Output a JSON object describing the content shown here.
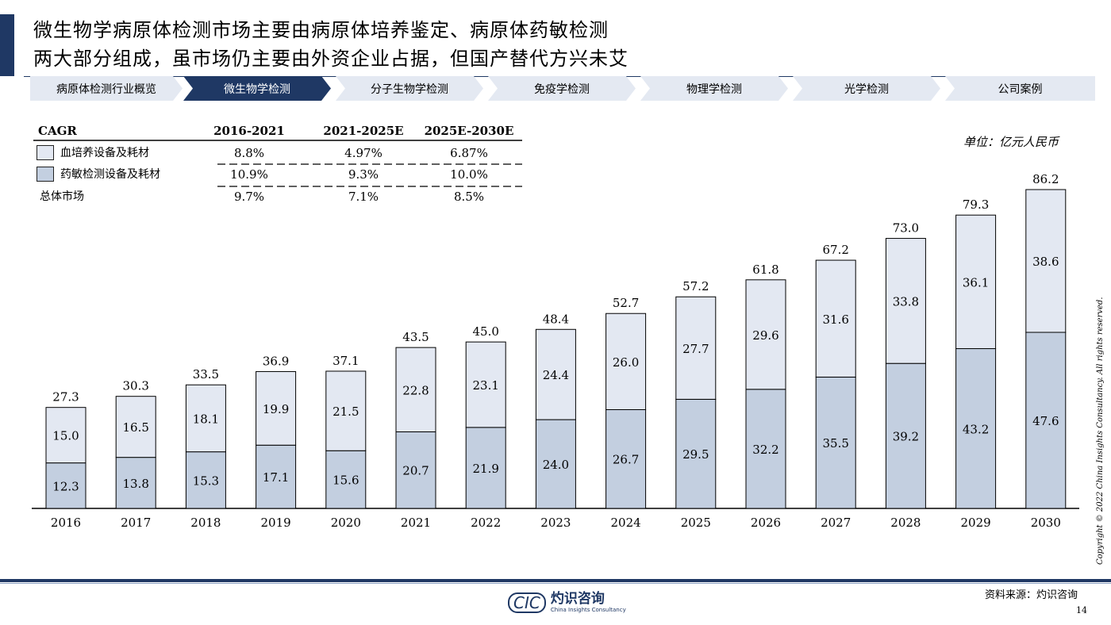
{
  "title": {
    "line1": "微生物学病原体检测市场主要由病原体培养鉴定、病原体药敏检测",
    "line2": "两大部分组成，虽市场仍主要由外资企业占据，但国产替代方兴未艾"
  },
  "nav": {
    "tabs": [
      {
        "label": "病原体检测行业概览",
        "active": false
      },
      {
        "label": "微生物学检测",
        "active": true
      },
      {
        "label": "分子生物学检测",
        "active": false
      },
      {
        "label": "免疫学检测",
        "active": false
      },
      {
        "label": "物理学检测",
        "active": false
      },
      {
        "label": "光学检测",
        "active": false
      },
      {
        "label": "公司案例",
        "active": false
      }
    ]
  },
  "cagr_table": {
    "header": "CAGR",
    "periods": [
      "2016-2021",
      "2021-2025E",
      "2025E-2030E"
    ],
    "rows": [
      {
        "label": "血培养设备及耗材",
        "values": [
          "8.8%",
          "4.97%",
          "6.87%"
        ]
      },
      {
        "label": "药敏检测设备及耗材",
        "values": [
          "10.9%",
          "9.3%",
          "10.0%"
        ]
      },
      {
        "label": "总体市场",
        "values": [
          "9.7%",
          "7.1%",
          "8.5%"
        ]
      }
    ]
  },
  "unit": "单位：亿元人民币",
  "colors": {
    "navy": "#1f3864",
    "light_series": "#e3e8f2",
    "dark_series": "#c3cfe0",
    "nav_bg": "#e4e9f2"
  },
  "chart_data": {
    "type": "bar",
    "stacked": true,
    "categories": [
      "2016",
      "2017",
      "2018",
      "2019",
      "2020",
      "2021",
      "2022",
      "2023",
      "2024",
      "2025",
      "2026",
      "2027",
      "2028",
      "2029",
      "2030"
    ],
    "series": [
      {
        "name": "药敏检测设备及耗材",
        "values": [
          12.3,
          13.8,
          15.3,
          17.1,
          15.6,
          20.7,
          21.9,
          24.0,
          26.7,
          29.5,
          32.2,
          35.5,
          39.2,
          43.2,
          47.6
        ]
      },
      {
        "name": "血培养设备及耗材",
        "values": [
          15.0,
          16.5,
          18.1,
          19.9,
          21.5,
          22.8,
          23.1,
          24.4,
          26.0,
          27.7,
          29.6,
          31.6,
          33.8,
          36.1,
          38.6
        ]
      }
    ],
    "totals": [
      "27.3",
      "30.3",
      "33.5",
      "36.9",
      "37.1",
      "43.5",
      "45.0",
      "48.4",
      "52.7",
      "57.2",
      "61.8",
      "67.2",
      "73.0",
      "79.3",
      "86.2"
    ],
    "ylim": [
      0,
      86.2
    ],
    "legend": "top-left"
  },
  "footer": {
    "logo_mark": "CIC",
    "logo_cn": "灼识咨询",
    "logo_en": "China Insights Consultancy",
    "source": "资料来源：灼识咨询",
    "page": "14",
    "copyright": "Copyright © 2022 China Insights Consultancy. All rights reserved."
  }
}
